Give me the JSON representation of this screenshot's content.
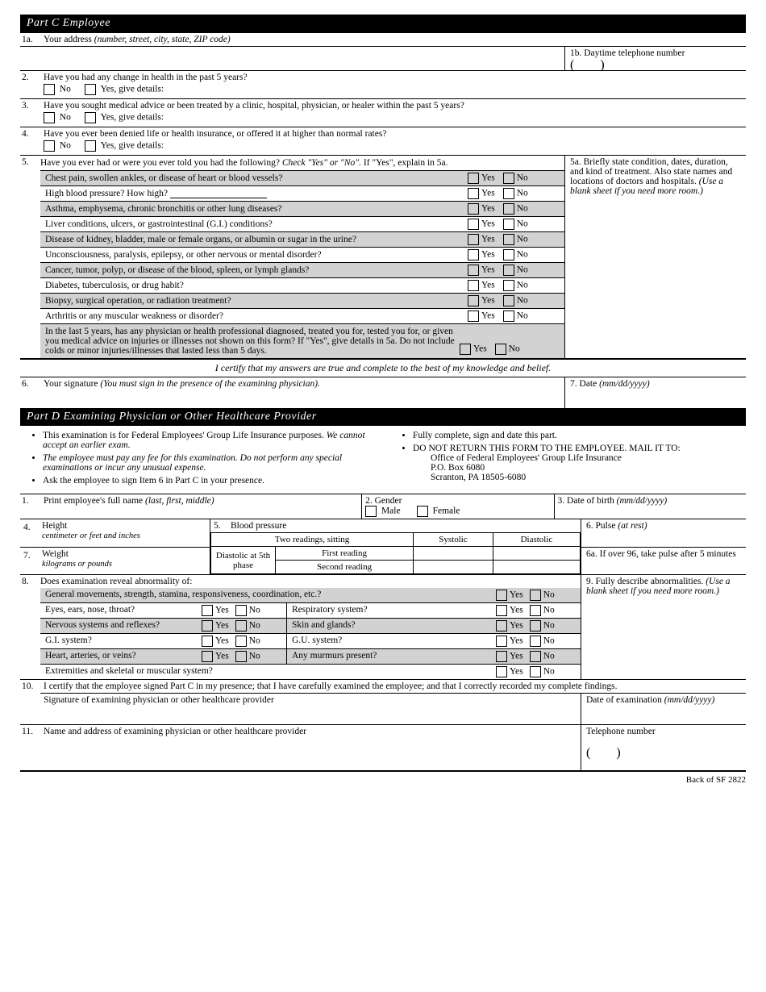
{
  "partC": {
    "title": "Part C    Employee"
  },
  "q1a": {
    "num": "1a.",
    "label": "Your address",
    "hint": "(number, street, city, state, ZIP code)"
  },
  "q1b": {
    "num": "1b.",
    "label": "Daytime telephone number"
  },
  "q2": {
    "num": "2.",
    "label": "Have you had any change in health in the past 5 years?",
    "no": "No",
    "yes": "Yes, give details:"
  },
  "q3": {
    "num": "3.",
    "label": "Have you sought medical advice or been treated by a clinic, hospital, physician, or healer within the past 5 years?",
    "no": "No",
    "yes": "Yes, give details:"
  },
  "q4": {
    "num": "4.",
    "label": "Have you ever been denied life or health insurance, or offered it at higher than normal rates?",
    "no": "No",
    "yes": "Yes, give details:"
  },
  "q5": {
    "num": "5.",
    "label": "Have you ever had or were you ever told you had the following? ",
    "inst": "Check \"Yes\" or \"No\".",
    "inst2": " If \"Yes\", explain in 5a.",
    "yes": "Yes",
    "no": "No"
  },
  "q5a": {
    "num": "5a.",
    "label": "Briefly state condition, dates, duration, and kind of treatment. Also state names and locations of doctors and hospitals. ",
    "hint": "(Use a blank sheet if you need more room.)"
  },
  "conditions": [
    {
      "text": "Chest pain, swollen ankles, or disease of heart or blood vessels?",
      "shade": true
    },
    {
      "text": "High blood pressure? How high?",
      "shade": false,
      "under": true
    },
    {
      "text": "Asthma, emphysema, chronic bronchitis or other lung diseases?",
      "shade": true
    },
    {
      "text": "Liver conditions, ulcers, or gastrointestinal (G.I.) conditions?",
      "shade": false
    },
    {
      "text": "Disease of kidney, bladder, male or female organs, or albumin or sugar in the urine?",
      "shade": true
    },
    {
      "text": "Unconsciousness, paralysis, epilepsy, or other nervous or mental disorder?",
      "shade": false
    },
    {
      "text": "Cancer, tumor, polyp, or disease of the blood, spleen, or lymph glands?",
      "shade": true
    },
    {
      "text": "Diabetes, tuberculosis, or drug habit?",
      "shade": false
    },
    {
      "text": "Biopsy, surgical operation, or radiation treatment?",
      "shade": true
    },
    {
      "text": "Arthritis or any muscular weakness or disorder?",
      "shade": false
    }
  ],
  "condLast": {
    "text": "In the last 5 years, has any physician or health professional diagnosed, treated you for, tested you for, or given you medical advice on injuries or illnesses not shown on this form? If \"Yes\", give details in 5a. Do not include colds or minor injuries/illnesses that lasted less than 5 days.",
    "shade": true
  },
  "cert": "I certify that my answers are true and complete to the best of my knowledge and belief.",
  "q6": {
    "num": "6.",
    "label": "Your signature ",
    "hint": "(You must sign in the presence of the examining physician)."
  },
  "q7": {
    "num": "7.",
    "label": "Date ",
    "hint": "(mm/dd/yyyy)"
  },
  "partD": {
    "title": "Part D    Examining Physician or Other Healthcare Provider"
  },
  "dLeft": [
    {
      "t": "This examination is for Federal Employees' Group Life Insurance purposes. ",
      "i": "We cannot accept an earlier exam."
    },
    {
      "t": "",
      "i": "The employee must pay any fee for this examination. Do not perform any special examinations or incur any unusual expense."
    },
    {
      "t": "Ask the employee to sign Item 6 in Part C in your presence.",
      "i": ""
    }
  ],
  "dRight": {
    "a": "Fully complete, sign and date this part.",
    "b": "DO NOT RETURN THIS FORM TO THE EMPLOYEE. MAIL IT TO:",
    "c": "Office of Federal Employees' Group Life Insurance",
    "d": "P.O. Box 6080",
    "e": "Scranton, PA 18505-6080"
  },
  "d1": {
    "num": "1.",
    "label": "Print employee's full name ",
    "hint": "(last, first, middle)"
  },
  "d2": {
    "num": "2.",
    "label": "Gender",
    "m": "Male",
    "f": "Female"
  },
  "d3": {
    "num": "3.",
    "label": "Date of birth ",
    "hint": "(mm/dd/yyyy)"
  },
  "d4": {
    "num": "4.",
    "label": "Height",
    "sub": "centimeter    or    feet and inches"
  },
  "d5": {
    "num": "5.",
    "label": "Blood pressure",
    "tr": "Two readings, sitting",
    "sy": "Systolic",
    "di": "Diastolic",
    "dp": "Diastolic at 5th phase",
    "r1": "First reading",
    "r2": "Second reading"
  },
  "d6": {
    "num": "6.",
    "label": "Pulse ",
    "hint": "(at rest)"
  },
  "d6a": {
    "num": "6a.",
    "label": "If over 96, take pulse after 5 minutes"
  },
  "d7": {
    "num": "7.",
    "label": "Weight",
    "sub": "kilograms    or    pounds"
  },
  "d8": {
    "num": "8.",
    "label": "Does examination reveal abnormality of:",
    "yes": "Yes",
    "no": "No"
  },
  "d9": {
    "num": "9.",
    "label": "Fully describe abnormalities. ",
    "hint": "(Use a blank sheet if you need more room.)"
  },
  "exLeft": [
    {
      "text": "General movements, strength, stamina, responsiveness, coordination, etc.?",
      "shade": true,
      "span": 2
    },
    {
      "text": "Eyes, ears, nose, throat?",
      "shade": false
    },
    {
      "text": "Nervous systems and reflexes?",
      "shade": true
    },
    {
      "text": "G.I. system?",
      "shade": false
    },
    {
      "text": "Heart, arteries, or veins?",
      "shade": true
    },
    {
      "text": "Extremities and skeletal or muscular system?",
      "shade": false,
      "span": 2
    }
  ],
  "exRight": [
    {
      "text": "Respiratory system?",
      "shade": false
    },
    {
      "text": "Skin and glands?",
      "shade": true
    },
    {
      "text": "G.U. system?",
      "shade": false
    },
    {
      "text": "Any murmurs present?",
      "shade": true
    }
  ],
  "d10": {
    "num": "10.",
    "label": "I certify that the employee signed Part C in my presence; that I have carefully examined the employee; and that I correctly recorded my complete findings.",
    "sig": "Signature of examining physician or other healthcare provider",
    "date": "Date of examination ",
    "dhint": "(mm/dd/yyyy)"
  },
  "d11": {
    "num": "11.",
    "label": "Name and address of examining physician or other healthcare provider",
    "tel": "Telephone number"
  },
  "foot": "Back of SF 2822"
}
